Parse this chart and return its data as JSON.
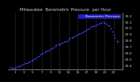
{
  "title": "Milwaukee  Barometric Pressure  per Hour",
  "background_color": "#000000",
  "plot_bg_color": "#000000",
  "dot_color": "#4444ff",
  "grid_color": "#444455",
  "ylim": [
    29.35,
    30.25
  ],
  "yticks": [
    29.4,
    29.5,
    29.6,
    29.7,
    29.8,
    29.9,
    30.0,
    30.1,
    30.2
  ],
  "ytick_labels": [
    "29.4",
    "29.5",
    "29.6",
    "29.7",
    "29.8",
    "29.9",
    "30.0",
    "30.1",
    "30.2"
  ],
  "xlim": [
    -0.5,
    25
  ],
  "scatter_x": [
    0,
    0.3,
    0.7,
    1,
    1.3,
    1.7,
    2,
    2.3,
    2.7,
    3,
    3.3,
    3.7,
    4,
    4.3,
    4.7,
    5,
    5.3,
    5.7,
    6,
    6.3,
    6.7,
    7,
    7.3,
    7.7,
    8,
    8.3,
    8.7,
    9,
    9.3,
    9.7,
    10,
    10.3,
    10.7,
    11,
    11.3,
    11.7,
    12,
    12.3,
    12.7,
    13,
    13.3,
    13.7,
    14,
    14.3,
    14.7,
    15,
    15.3,
    15.7,
    16,
    16.3,
    16.7,
    17,
    17.3,
    17.7,
    18,
    18.3,
    18.7,
    19,
    19.3,
    19.7,
    20,
    20.3,
    20.7,
    21,
    21.3,
    21.7,
    22,
    22.3,
    22.7,
    23,
    23.3,
    23.7,
    24
  ],
  "scatter_y": [
    29.38,
    29.37,
    29.36,
    29.37,
    29.38,
    29.39,
    29.4,
    29.41,
    29.42,
    29.43,
    29.44,
    29.45,
    29.46,
    29.47,
    29.48,
    29.5,
    29.51,
    29.52,
    29.54,
    29.56,
    29.58,
    29.6,
    29.61,
    29.62,
    29.63,
    29.64,
    29.65,
    29.67,
    29.68,
    29.7,
    29.72,
    29.73,
    29.74,
    29.75,
    29.76,
    29.77,
    29.78,
    29.79,
    29.8,
    29.82,
    29.84,
    29.85,
    29.86,
    29.87,
    29.88,
    29.9,
    29.91,
    29.92,
    29.94,
    29.95,
    29.96,
    29.98,
    29.99,
    30.0,
    30.02,
    30.03,
    30.04,
    30.05,
    30.06,
    30.07,
    30.08,
    30.09,
    30.1,
    30.09,
    30.07,
    30.05,
    30.03,
    30.0,
    29.95,
    29.9,
    29.85,
    29.8,
    29.78
  ],
  "xtick_positions": [
    1,
    3,
    5,
    7,
    9,
    11,
    13,
    15,
    17,
    19,
    21,
    23
  ],
  "xtick_labels": [
    "1",
    "3",
    "5",
    "7",
    "9",
    "11",
    "13",
    "15",
    "17",
    "19",
    "21",
    "23"
  ],
  "vgrid_positions": [
    1,
    3,
    5,
    7,
    9,
    11,
    13,
    15,
    17,
    19,
    21,
    23
  ],
  "legend_label": "Barometric Pressure",
  "title_fontsize": 4.0,
  "tick_fontsize": 3.2,
  "marker_size": 1.5,
  "text_color": "#cccccc",
  "title_color": "#cccccc"
}
